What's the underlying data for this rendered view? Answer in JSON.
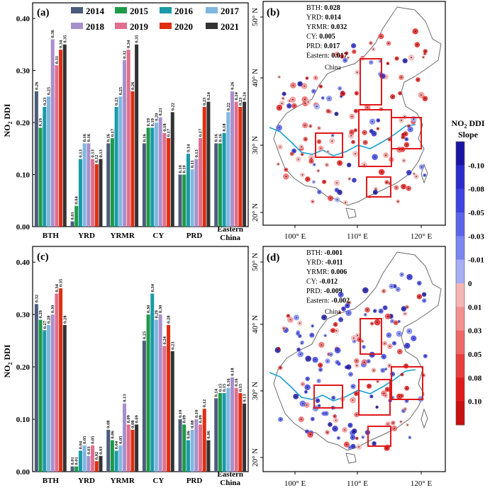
{
  "panels": {
    "a": {
      "label": "(a)",
      "ylabel_main": "NO",
      "ylabel_sub": "2",
      "ylabel_tail": " DDI"
    },
    "b": {
      "label": "(b)",
      "china_label": "China",
      "stats": [
        {
          "name": "BTH:",
          "value": "0.028"
        },
        {
          "name": "YRD:",
          "value": "0.014"
        },
        {
          "name": "YRMR:",
          "value": "0.032"
        },
        {
          "name": "CY:",
          "value": "0.005"
        },
        {
          "name": "PRD:",
          "value": "0.017"
        },
        {
          "name": "Eastern:",
          "value": "0.017"
        }
      ]
    },
    "c": {
      "label": "(c)",
      "ylabel_main": "NO",
      "ylabel_sub": "2",
      "ylabel_tail": " DDI"
    },
    "d": {
      "label": "(d)",
      "china_label": "China",
      "stats": [
        {
          "name": "BTH:",
          "value": "-0.001"
        },
        {
          "name": "YRD:",
          "value": "-0.011"
        },
        {
          "name": "YRMR:",
          "value": "0.006"
        },
        {
          "name": "CY:",
          "value": "-0.012"
        },
        {
          "name": "PRD:",
          "value": "-0.009"
        },
        {
          "name": "Eastern:",
          "value": "-0.002"
        }
      ]
    }
  },
  "map_axes": {
    "lon_ticks": [
      "100° E",
      "110° E",
      "120° E"
    ],
    "lat_ticks": [
      "50° N",
      "40° N",
      "30° N",
      "20° N"
    ]
  },
  "colorbar": {
    "title_line1_main": "NO",
    "title_line1_sub": "2",
    "title_line1_tail": " DDI",
    "title_line2": "Slope",
    "labels": [
      "-0.10",
      "-0.08",
      "-0.05",
      "-0.03",
      "-0.01",
      "0",
      "0.01",
      "0.03",
      "0.05",
      "0.08",
      "0.10"
    ],
    "colors": [
      "#1a16a3",
      "#2c2ccc",
      "#3d44e0",
      "#5a64ea",
      "#7b86f0",
      "#a6aef5",
      "#f6b5b5",
      "#f49090",
      "#ef6868",
      "#e83e3e",
      "#e01a1a",
      "#c81010"
    ]
  },
  "chart_data": [
    {
      "type": "bar",
      "panel": "a",
      "categories": [
        "BTH",
        "YRD",
        "YRMR",
        "CY",
        "PRD",
        "Eastern China"
      ],
      "category_lines": [
        [
          "BTH"
        ],
        [
          "YRD"
        ],
        [
          "YRMR"
        ],
        [
          "CY"
        ],
        [
          "PRD"
        ],
        [
          "Eastern",
          "China"
        ]
      ],
      "yticks": [
        "0.00",
        "0.10",
        "0.20",
        "0.30",
        "0.40"
      ],
      "ylim": [
        0,
        0.43
      ],
      "legend_placement": "top",
      "series": [
        {
          "name": "2014",
          "color": "#4c5d7c",
          "values": [
            0.26,
            0.01,
            0.16,
            0.16,
            0.1,
            0.16
          ]
        },
        {
          "name": "2015",
          "color": "#1e9a48",
          "values": [
            0.19,
            0.04,
            0.17,
            0.19,
            0.1,
            0.16
          ]
        },
        {
          "name": "2016",
          "color": "#1b9aa8",
          "values": [
            0.23,
            0.13,
            0.23,
            0.19,
            0.14,
            0.18
          ]
        },
        {
          "name": "2017",
          "color": "#7fb7e0",
          "values": [
            0.25,
            0.16,
            0.25,
            0.2,
            0.11,
            0.22
          ]
        },
        {
          "name": "2018",
          "color": "#a98fcb",
          "values": [
            0.36,
            0.16,
            0.32,
            0.21,
            0.13,
            0.26
          ]
        },
        {
          "name": "2019",
          "color": "#e06e8c",
          "values": [
            0.31,
            0.13,
            0.34,
            0.18,
            0.17,
            0.24
          ]
        },
        {
          "name": "2020",
          "color": "#e02d10",
          "values": [
            0.34,
            0.12,
            0.26,
            0.17,
            0.23,
            0.23
          ]
        },
        {
          "name": "2021",
          "color": "#333333",
          "values": [
            0.35,
            0.13,
            0.35,
            0.22,
            0.24,
            0.24
          ]
        }
      ]
    },
    {
      "type": "bar",
      "panel": "c",
      "categories": [
        "BTH",
        "YRD",
        "YRMR",
        "CY",
        "PRD",
        "Eastern China"
      ],
      "category_lines": [
        [
          "BTH"
        ],
        [
          "YRD"
        ],
        [
          "YRMR"
        ],
        [
          "CY"
        ],
        [
          "PRD"
        ],
        [
          "Eastern",
          "China"
        ]
      ],
      "yticks": [
        "0.00",
        "0.10",
        "0.20",
        "0.30",
        "0.40"
      ],
      "ylim": [
        0,
        0.43
      ],
      "series": [
        {
          "name": "2014",
          "color": "#4c5d7c",
          "values": [
            0.32,
            0.01,
            0.08,
            0.25,
            0.1,
            0.14
          ]
        },
        {
          "name": "2015",
          "color": "#1e9a48",
          "values": [
            0.29,
            0.01,
            0.06,
            0.3,
            0.09,
            0.15
          ]
        },
        {
          "name": "2016",
          "color": "#1b9aa8",
          "values": [
            0.27,
            0.04,
            0.04,
            0.34,
            0.06,
            0.15
          ]
        },
        {
          "name": "2017",
          "color": "#7fb7e0",
          "values": [
            0.28,
            0.05,
            0.05,
            0.29,
            0.08,
            0.16
          ]
        },
        {
          "name": "2018",
          "color": "#a98fcb",
          "values": [
            0.3,
            0.03,
            0.13,
            0.3,
            0.1,
            0.18
          ]
        },
        {
          "name": "2019",
          "color": "#e06e8c",
          "values": [
            0.34,
            0.05,
            0.09,
            0.24,
            0.09,
            0.16
          ]
        },
        {
          "name": "2020",
          "color": "#e02d10",
          "values": [
            0.35,
            0.02,
            0.08,
            0.28,
            0.12,
            0.15
          ]
        },
        {
          "name": "2021",
          "color": "#333333",
          "values": [
            0.28,
            0.03,
            0.09,
            0.23,
            0.06,
            0.13
          ]
        }
      ]
    }
  ]
}
